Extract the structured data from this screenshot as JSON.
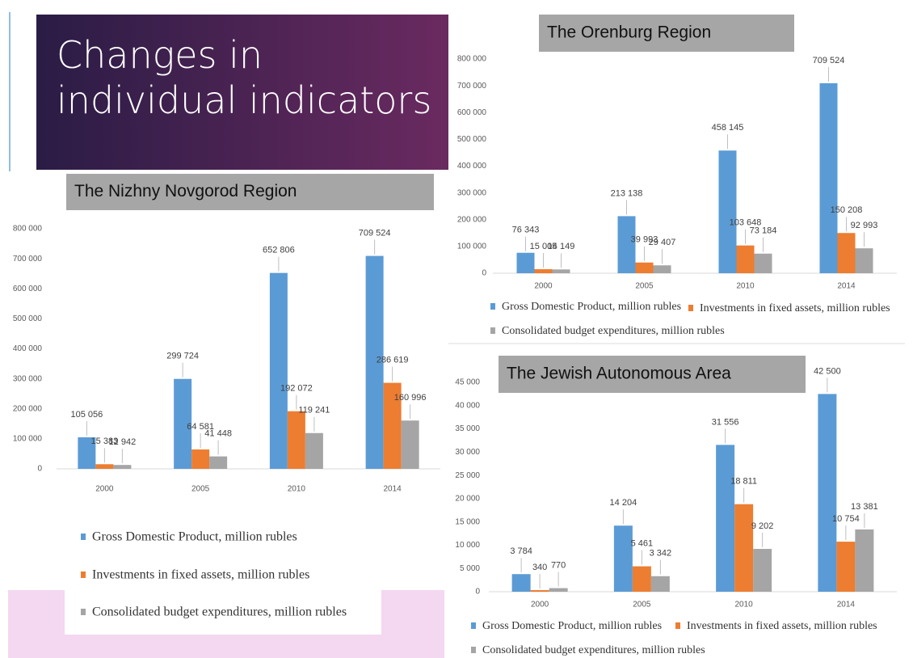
{
  "slide": {
    "title": "Changes in individual indicators"
  },
  "chart_data": [
    {
      "type": "bar",
      "title": "The Nizhny Novgorod Region",
      "categories": [
        "2000",
        "2005",
        "2010",
        "2014"
      ],
      "series": [
        {
          "name": "Gross Domestic Product, million rubles",
          "color": "#5b9bd5",
          "values": [
            105056,
            299724,
            652806,
            709524
          ],
          "value_labels": [
            "105 056",
            "299 724",
            "652 806",
            "709 524"
          ]
        },
        {
          "name": "Investments in fixed assets, million rubles",
          "color": "#ed7d31",
          "values": [
            15383,
            64581,
            192072,
            286619
          ],
          "value_labels": [
            "15 383",
            "64 581",
            "192 072",
            "286 619"
          ]
        },
        {
          "name": "Consolidated budget expenditures, million rubles",
          "color": "#a5a5a5",
          "values": [
            12942,
            41448,
            119241,
            160996
          ],
          "value_labels": [
            "12 942",
            "41 448",
            "119 241",
            "160 996"
          ]
        }
      ],
      "ylim": [
        0,
        800000
      ],
      "yticks": [
        0,
        {
          "value": 100000,
          "label": "100 000"
        },
        {
          "value": 200000,
          "label": "200 000"
        },
        {
          "value": 300000,
          "label": "300 000"
        },
        {
          "value": 400000,
          "label": "400 000"
        },
        {
          "value": 500000,
          "label": "500 000"
        },
        {
          "value": 600000,
          "label": "600 000"
        },
        {
          "value": 700000,
          "label": "700 000"
        },
        {
          "value": 800000,
          "label": "800 000"
        }
      ],
      "grid": false
    },
    {
      "type": "bar",
      "title": "The Orenburg Region",
      "categories": [
        "2000",
        "2005",
        "2010",
        "2014"
      ],
      "series": [
        {
          "name": "Gross Domestic Product, million rubles",
          "color": "#5b9bd5",
          "values": [
            76343,
            213138,
            458145,
            709524
          ],
          "value_labels": [
            "76 343",
            "213 138",
            "458 145",
            "709 524"
          ]
        },
        {
          "name": "Investments in fixed assets, million rubles",
          "color": "#ed7d31",
          "values": [
            15005,
            39993,
            103648,
            150208
          ],
          "value_labels": [
            "15 005",
            "39 993",
            "103 648",
            "150 208"
          ]
        },
        {
          "name": "Consolidated budget expenditures, million rubles",
          "color": "#a5a5a5",
          "values": [
            14149,
            29407,
            73184,
            92993
          ],
          "value_labels": [
            "14 149",
            "29 407",
            "73 184",
            "92 993"
          ]
        }
      ],
      "ylim": [
        0,
        800000
      ],
      "yticks": [
        0,
        {
          "value": 100000,
          "label": "100 000"
        },
        {
          "value": 200000,
          "label": "200 000"
        },
        {
          "value": 300000,
          "label": "300 000"
        },
        {
          "value": 400000,
          "label": "400 000"
        },
        {
          "value": 500000,
          "label": "500 000"
        },
        {
          "value": 600000,
          "label": "600 000"
        },
        {
          "value": 700000,
          "label": "700 000"
        },
        {
          "value": 800000,
          "label": "800 000"
        }
      ],
      "grid": false
    },
    {
      "type": "bar",
      "title": "The Jewish Autonomous Area",
      "categories": [
        "2000",
        "2005",
        "2010",
        "2014"
      ],
      "series": [
        {
          "name": "Gross Domestic Product, million rubles",
          "color": "#5b9bd5",
          "values": [
            3784,
            14204,
            31556,
            42500
          ],
          "value_labels": [
            "3 784",
            "14 204",
            "31 556",
            "42 500"
          ]
        },
        {
          "name": "Investments in fixed assets, million rubles",
          "color": "#ed7d31",
          "values": [
            340,
            5461,
            18811,
            10754
          ],
          "value_labels": [
            "340",
            "5 461",
            "18 811",
            "10 754"
          ]
        },
        {
          "name": "Consolidated budget expenditures, million rubles",
          "color": "#a5a5a5",
          "values": [
            770,
            3342,
            9202,
            13381
          ],
          "value_labels": [
            "770",
            "3 342",
            "9 202",
            "13 381"
          ]
        }
      ],
      "ylim": [
        0,
        45000
      ],
      "yticks": [
        0,
        {
          "value": 5000,
          "label": "5 000"
        },
        {
          "value": 10000,
          "label": "10 000"
        },
        {
          "value": 15000,
          "label": "15 000"
        },
        {
          "value": 20000,
          "label": "20 000"
        },
        {
          "value": 25000,
          "label": "25 000"
        },
        {
          "value": 30000,
          "label": "30 000"
        },
        {
          "value": 35000,
          "label": "35 000"
        },
        {
          "value": 40000,
          "label": "40 000"
        },
        {
          "value": 45000,
          "label": "45 000"
        }
      ],
      "grid": false
    }
  ]
}
